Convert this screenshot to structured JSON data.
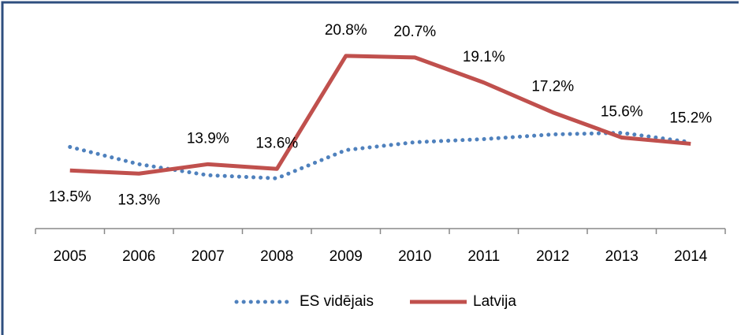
{
  "chart_data": {
    "type": "line",
    "categories": [
      "2005",
      "2006",
      "2007",
      "2008",
      "2009",
      "2010",
      "2011",
      "2012",
      "2013",
      "2014"
    ],
    "series": [
      {
        "name": "ES vidējais",
        "color": "#4f81bd",
        "style": "dotted",
        "values": [
          15.0,
          13.9,
          13.2,
          13.0,
          14.8,
          15.3,
          15.5,
          15.8,
          15.9,
          15.3
        ]
      },
      {
        "name": "Latvija",
        "color": "#c0504d",
        "style": "solid",
        "values": [
          13.5,
          13.3,
          13.9,
          13.6,
          20.8,
          20.7,
          19.1,
          17.2,
          15.6,
          15.2
        ],
        "value_labels": [
          "13.5%",
          "13.3%",
          "13.9%",
          "13.6%",
          "20.8%",
          "20.7%",
          "19.1%",
          "17.2%",
          "15.6%",
          "15.2%"
        ]
      }
    ],
    "ylim": [
      10,
      22
    ],
    "legend": "bottom"
  }
}
